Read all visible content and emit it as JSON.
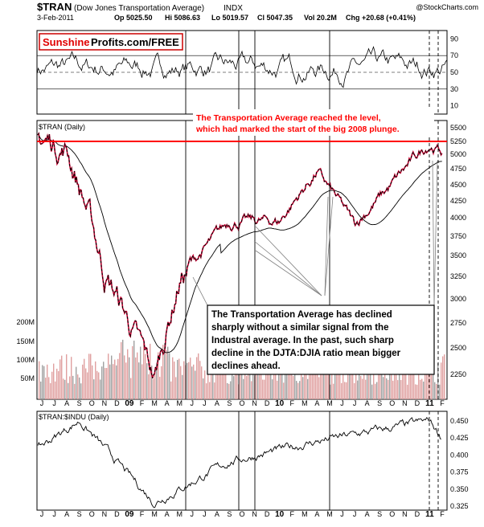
{
  "header": {
    "symbol": "$TRAN",
    "name": "(Dow Jones Transportation Average)",
    "exchange": "INDX",
    "date": "3-Feb-2011",
    "open": "Op 5025.50",
    "high": "Hi 5086.63",
    "low": "Lo 5019.57",
    "close": "Cl 5047.35",
    "volume": "Vol 20.2M",
    "change": "Chg +20.68 (+0.41%)",
    "watermark": "@StockCharts.com"
  },
  "logo": {
    "red": "Sunshine",
    "black": "Profits.com/FREE"
  },
  "colors": {
    "price": "#000000",
    "price_up": "#cc0033",
    "resistance": "#ff0000",
    "volume": "#e0a0a0",
    "volume_gray": "#a0a0a0",
    "rsi_overbought": "#2e8b2e",
    "annotation_red": "#ff0000"
  },
  "annotations": {
    "top_line1": "The Transportation Average reached the level,",
    "top_line2": "which had marked the start of the big 2008 plunge.",
    "box_line1": "The Transportation Average has declined",
    "box_line2": "sharply without a similar signal from the",
    "box_line3": "Industral average. In the past, such sharp",
    "box_line4": "decline in the DJTA:DJIA ratio mean bigger",
    "box_line5": "declines ahead."
  },
  "x_axis": {
    "months": [
      "J",
      "J",
      "A",
      "S",
      "O",
      "N",
      "D",
      "09",
      "F",
      "M",
      "A",
      "M",
      "J",
      "J",
      "A",
      "S",
      "O",
      "N",
      "D",
      "10",
      "F",
      "M",
      "A",
      "M",
      "J",
      "J",
      "A",
      "S",
      "O",
      "N",
      "D",
      "11",
      "F"
    ]
  },
  "chart_data": [
    {
      "type": "line",
      "panel": "RSI",
      "y_ticks": [
        10,
        30,
        50,
        70,
        90
      ],
      "ylim": [
        0,
        100
      ],
      "levels": [
        30,
        50,
        70
      ]
    },
    {
      "type": "line",
      "panel": "price",
      "series_label": "$TRAN (Daily)",
      "y_ticks": [
        2250,
        2500,
        2750,
        3000,
        3250,
        3500,
        3750,
        4000,
        4250,
        4500,
        4750,
        5000,
        5250,
        5500
      ],
      "volume_ticks": [
        "200M",
        "150M",
        "100M",
        "50M"
      ],
      "resistance_level": 5250,
      "start": 5400,
      "low": 2200,
      "end": 5047,
      "key_points": [
        {
          "month": "Jun 2008",
          "value": 5350
        },
        {
          "month": "Aug 2008",
          "value": 5100
        },
        {
          "month": "Nov 2008",
          "value": 3300
        },
        {
          "month": "Mar 2009",
          "value": 2200
        },
        {
          "month": "May 2009",
          "value": 3200
        },
        {
          "month": "Sep 2009",
          "value": 3950
        },
        {
          "month": "Jan 2010",
          "value": 3950
        },
        {
          "month": "Apr 2010",
          "value": 4700
        },
        {
          "month": "Jul 2010",
          "value": 3900
        },
        {
          "month": "Oct 2010",
          "value": 4500
        },
        {
          "month": "Jan 2011",
          "value": 5200
        },
        {
          "month": "Feb 2011",
          "value": 5047
        }
      ]
    },
    {
      "type": "line",
      "panel": "ratio",
      "series_label": "$TRAN:$INDU (Daily)",
      "y_ticks": [
        0.325,
        0.35,
        0.375,
        0.4,
        0.425,
        0.45
      ],
      "key_points": [
        {
          "month": "Jun 2008",
          "value": 0.41
        },
        {
          "month": "Sep 2008",
          "value": 0.45
        },
        {
          "month": "Dec 2008",
          "value": 0.39
        },
        {
          "month": "Mar 2009",
          "value": 0.33
        },
        {
          "month": "Sep 2009",
          "value": 0.39
        },
        {
          "month": "Apr 2010",
          "value": 0.42
        },
        {
          "month": "Jan 2011",
          "value": 0.45
        },
        {
          "month": "Feb 2011",
          "value": 0.425
        }
      ]
    }
  ]
}
